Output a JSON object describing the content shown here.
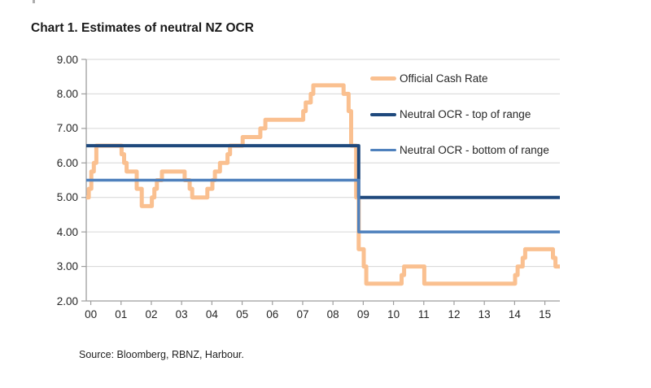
{
  "title": "Chart 1. Estimates of neutral NZ OCR",
  "source": "Source: Bloomberg, RBNZ, Harbour.",
  "colors": {
    "grid": "#d6d6d6",
    "axis": "#9e9e9e",
    "tick": "#9e9e9e",
    "text": "#262626",
    "ocr_line": "#fac090",
    "neutral_top_line": "#1f497d",
    "neutral_bottom_line": "#4f81bd"
  },
  "chart_data": {
    "type": "line",
    "step": true,
    "title": "Chart 1. Estimates of neutral NZ OCR",
    "xlabel": "",
    "ylabel": "",
    "grid": true,
    "legend_position": "top-right",
    "y_axis": {
      "min": 2.0,
      "max": 9.0,
      "tick_interval": 1.0,
      "tick_labels": [
        "9.00",
        "8.00",
        "7.00",
        "6.00",
        "5.00",
        "4.00",
        "3.00",
        "2.00"
      ]
    },
    "x_axis": {
      "start": "2000-01",
      "end": "2015-09",
      "tick_labels": [
        "00",
        "01",
        "02",
        "03",
        "04",
        "05",
        "06",
        "07",
        "08",
        "09",
        "10",
        "11",
        "12",
        "13",
        "14",
        "15"
      ]
    },
    "series": [
      {
        "name": "Official Cash Rate",
        "color": "#fac090",
        "stroke_width": 5,
        "end": "2015-08",
        "steps": [
          [
            "2000-01",
            5.0
          ],
          [
            "2000-02",
            5.25
          ],
          [
            "2000-03",
            5.75
          ],
          [
            "2000-04",
            6.0
          ],
          [
            "2000-05",
            6.5
          ],
          [
            "2001-03",
            6.25
          ],
          [
            "2001-04",
            6.0
          ],
          [
            "2001-05",
            5.75
          ],
          [
            "2001-09",
            5.25
          ],
          [
            "2001-11",
            4.75
          ],
          [
            "2002-03",
            5.0
          ],
          [
            "2002-04",
            5.25
          ],
          [
            "2002-05",
            5.5
          ],
          [
            "2002-07",
            5.75
          ],
          [
            "2003-04",
            5.5
          ],
          [
            "2003-06",
            5.25
          ],
          [
            "2003-07",
            5.0
          ],
          [
            "2004-01",
            5.25
          ],
          [
            "2004-03",
            5.5
          ],
          [
            "2004-04",
            5.75
          ],
          [
            "2004-06",
            6.0
          ],
          [
            "2004-09",
            6.25
          ],
          [
            "2004-10",
            6.5
          ],
          [
            "2005-03",
            6.75
          ],
          [
            "2005-10",
            7.0
          ],
          [
            "2005-12",
            7.25
          ],
          [
            "2007-03",
            7.5
          ],
          [
            "2007-04",
            7.75
          ],
          [
            "2007-06",
            8.0
          ],
          [
            "2007-07",
            8.25
          ],
          [
            "2008-07",
            8.0
          ],
          [
            "2008-09",
            7.5
          ],
          [
            "2008-10",
            6.5
          ],
          [
            "2008-12",
            5.0
          ],
          [
            "2009-01",
            3.5
          ],
          [
            "2009-03",
            3.0
          ],
          [
            "2009-04",
            2.5
          ],
          [
            "2010-06",
            2.75
          ],
          [
            "2010-07",
            3.0
          ],
          [
            "2011-03",
            2.5
          ],
          [
            "2014-03",
            2.75
          ],
          [
            "2014-04",
            3.0
          ],
          [
            "2014-06",
            3.25
          ],
          [
            "2014-07",
            3.5
          ],
          [
            "2015-06",
            3.25
          ],
          [
            "2015-07",
            3.0
          ]
        ]
      },
      {
        "name": "Neutral OCR - top of range",
        "color": "#1f497d",
        "stroke_width": 4,
        "end": "axis",
        "steps": [
          [
            "2000-01",
            6.5
          ],
          [
            "2009-01",
            5.0
          ]
        ]
      },
      {
        "name": "Neutral OCR - bottom of range",
        "color": "#4f81bd",
        "stroke_width": 3.5,
        "end": "axis",
        "steps": [
          [
            "2000-01",
            5.5
          ],
          [
            "2009-01",
            4.0
          ]
        ]
      }
    ]
  }
}
